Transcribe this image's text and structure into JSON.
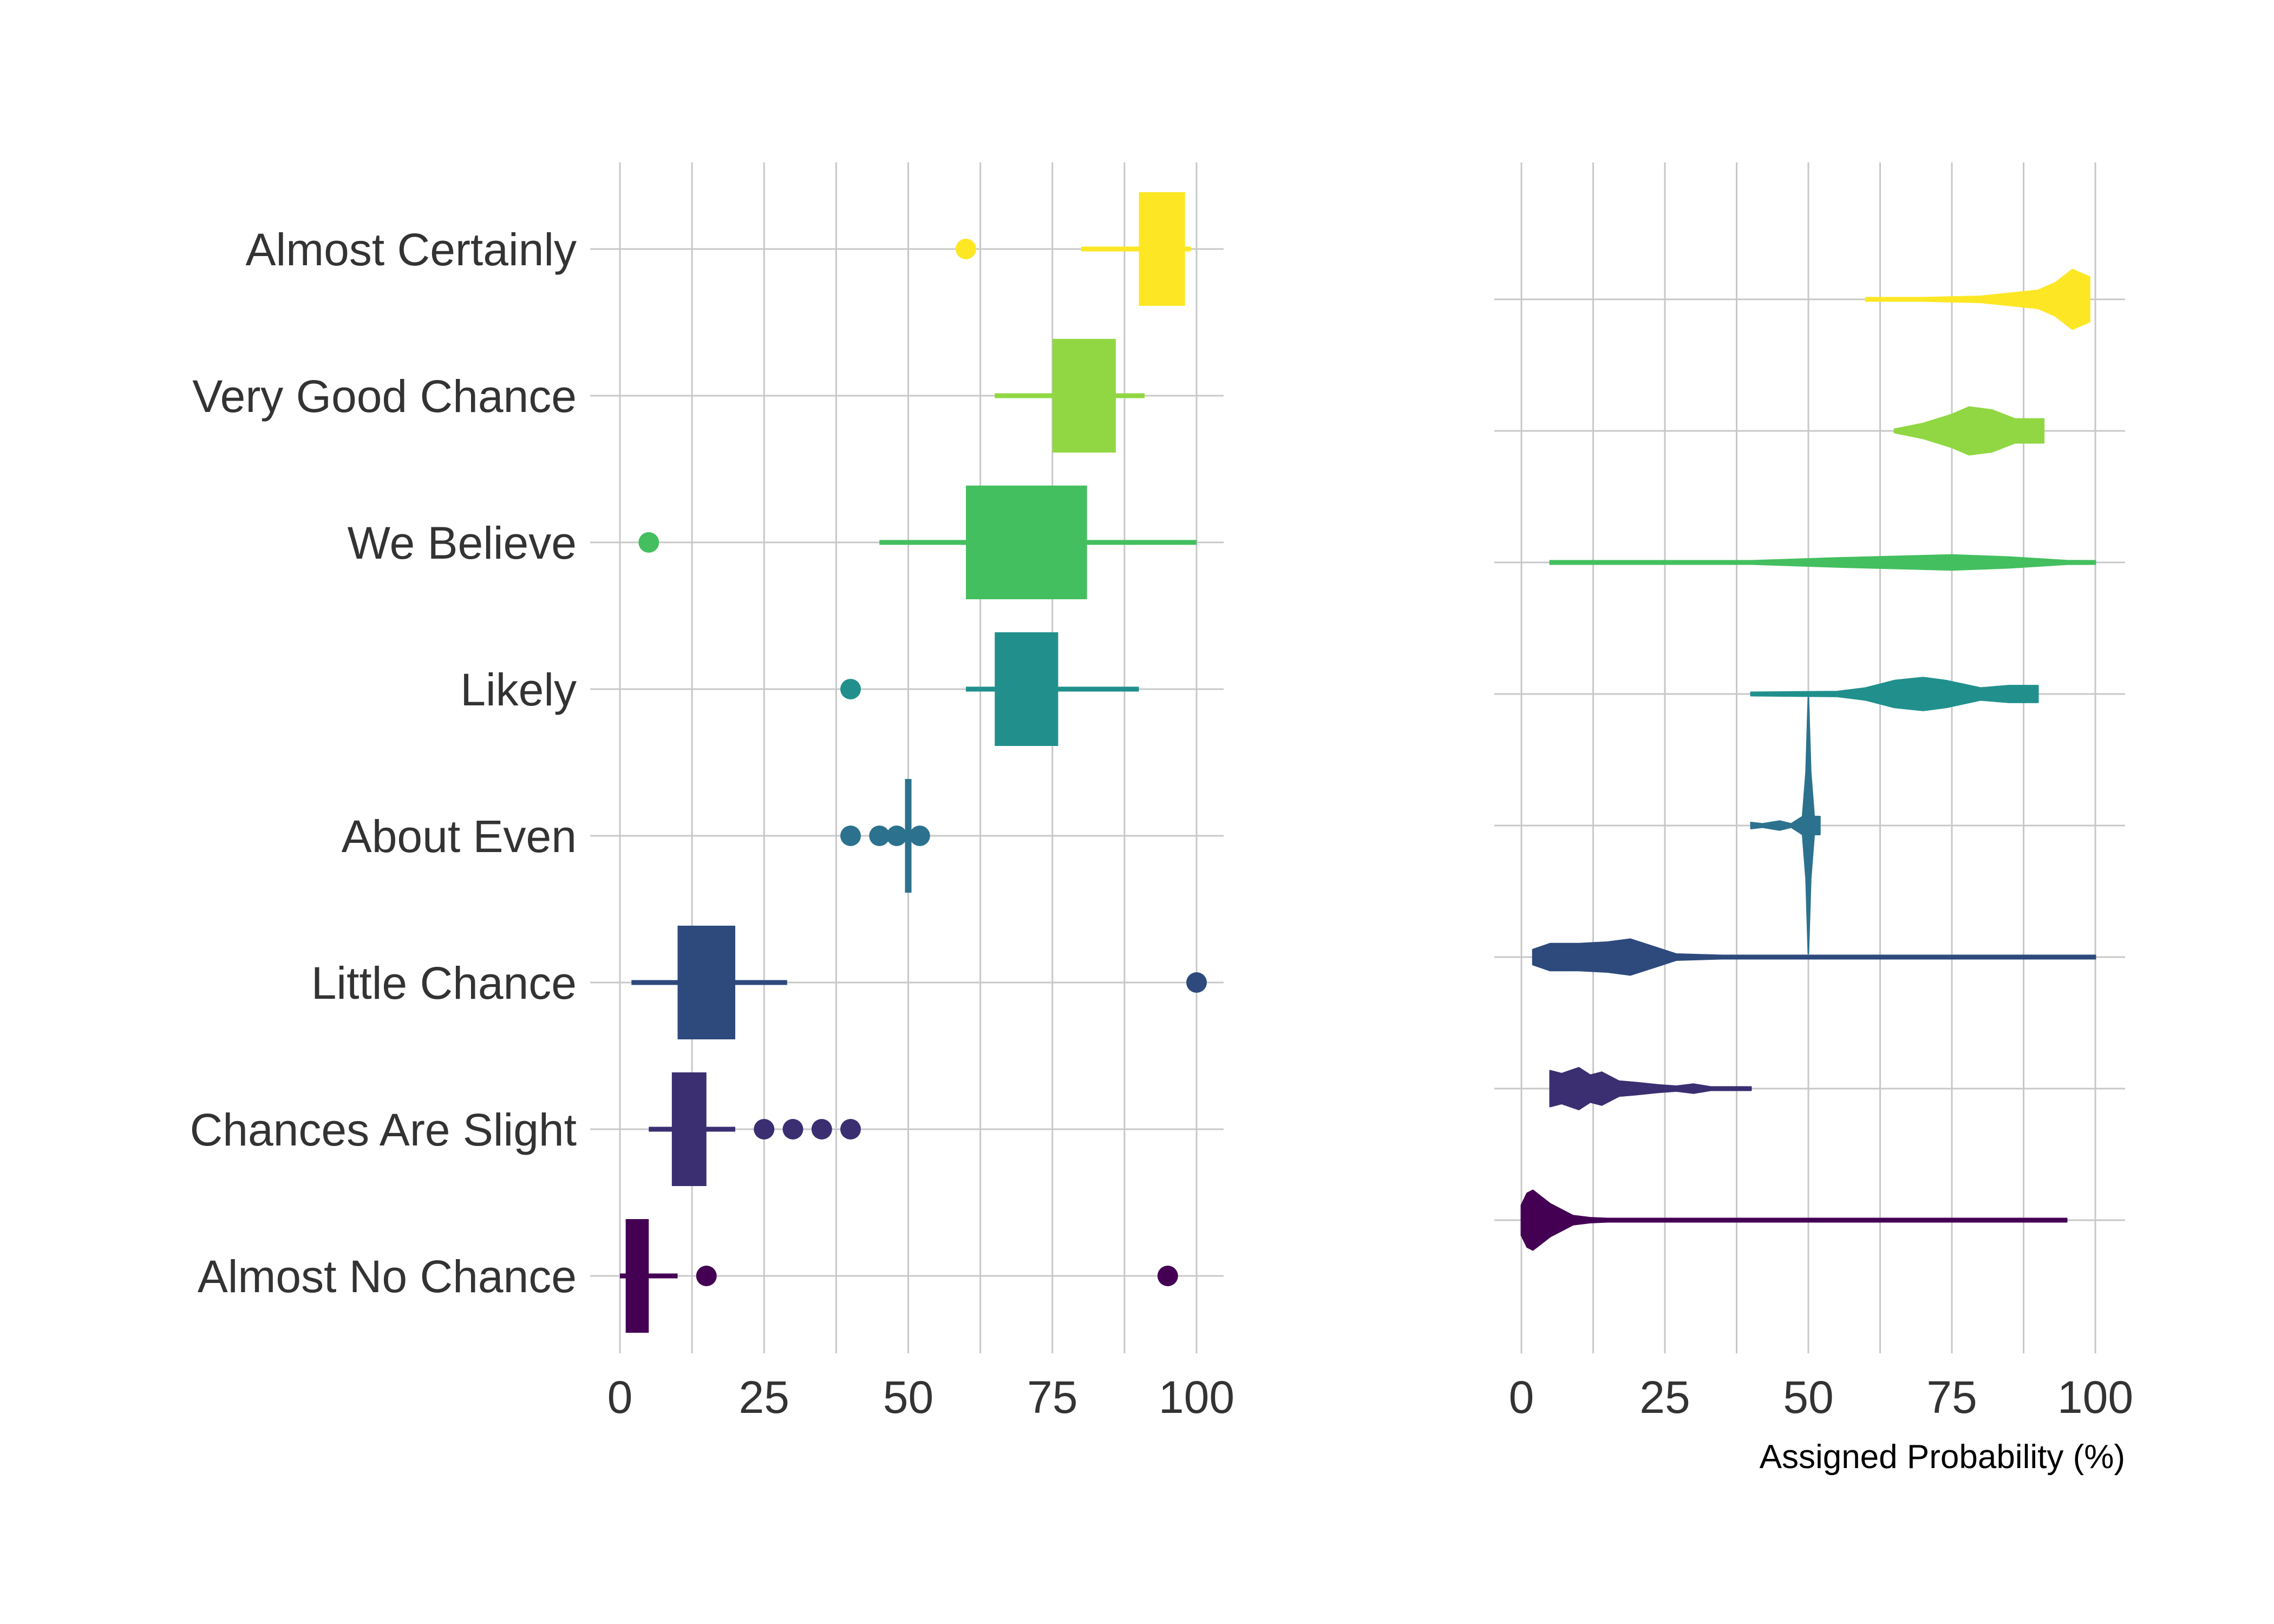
{
  "chart_data": [
    {
      "type": "box",
      "xlim": [
        0,
        100
      ],
      "xticks": [
        "0",
        "25",
        "50",
        "75",
        "100"
      ],
      "grid": true,
      "categories": [
        "Almost Certainly",
        "Very Good Chance",
        "We Believe",
        "Likely",
        "About Even",
        "Little Chance",
        "Chances Are Slight",
        "Almost No Chance"
      ],
      "colors": [
        "#fde725",
        "#90d743",
        "#44bf5f",
        "#21908d",
        "#2c728e",
        "#2e4a7d",
        "#3b2f72",
        "#440154"
      ],
      "boxes": [
        {
          "name": "Almost Certainly",
          "lower_whisker": 80,
          "q1": 90,
          "median": 95,
          "q3": 98,
          "upper_whisker": 99,
          "outliers": [
            60
          ]
        },
        {
          "name": "Very Good Chance",
          "lower_whisker": 65,
          "q1": 75,
          "median": 80,
          "q3": 86,
          "upper_whisker": 91,
          "outliers": []
        },
        {
          "name": "We Believe",
          "lower_whisker": 45,
          "q1": 60,
          "median": 75,
          "q3": 81,
          "upper_whisker": 100,
          "outliers": [
            5
          ]
        },
        {
          "name": "Likely",
          "lower_whisker": 60,
          "q1": 65,
          "median": 70,
          "q3": 76,
          "upper_whisker": 90,
          "outliers": [
            40
          ]
        },
        {
          "name": "About Even",
          "lower_whisker": 50,
          "q1": 50,
          "median": 50,
          "q3": 50,
          "upper_whisker": 50,
          "outliers": [
            40,
            45,
            48,
            52
          ]
        },
        {
          "name": "Little Chance",
          "lower_whisker": 2,
          "q1": 10,
          "median": 15,
          "q3": 20,
          "upper_whisker": 29,
          "outliers": [
            100
          ]
        },
        {
          "name": "Chances Are Slight",
          "lower_whisker": 5,
          "q1": 9,
          "median": 12,
          "q3": 15,
          "upper_whisker": 20,
          "outliers": [
            25,
            30,
            35,
            40
          ]
        },
        {
          "name": "Almost No Chance",
          "lower_whisker": 0,
          "q1": 1,
          "median": 2,
          "q3": 5,
          "upper_whisker": 10,
          "outliers": [
            15,
            95
          ]
        }
      ]
    },
    {
      "type": "violin",
      "xlim": [
        0,
        100
      ],
      "xticks": [
        "0",
        "25",
        "50",
        "75",
        "100"
      ],
      "xlabel": "Assigned Probability (%)",
      "grid": true,
      "violins": [
        {
          "name": "Almost Certainly",
          "color": "#fde725",
          "profile": [
            [
              60,
              0.02
            ],
            [
              70,
              0.03
            ],
            [
              80,
              0.1
            ],
            [
              85,
              0.2
            ],
            [
              90,
              0.3
            ],
            [
              93,
              0.55
            ],
            [
              96,
              1.0
            ],
            [
              99,
              0.75
            ]
          ]
        },
        {
          "name": "Very Good Chance",
          "color": "#90d743",
          "profile": [
            [
              65,
              0.05
            ],
            [
              70,
              0.25
            ],
            [
              75,
              0.55
            ],
            [
              78,
              0.8
            ],
            [
              82,
              0.7
            ],
            [
              86,
              0.4
            ],
            [
              88,
              0.4
            ],
            [
              91,
              0.4
            ]
          ]
        },
        {
          "name": "We Believe",
          "color": "#44bf5f",
          "profile": [
            [
              5,
              0.0
            ],
            [
              20,
              0.01
            ],
            [
              40,
              0.05
            ],
            [
              55,
              0.15
            ],
            [
              65,
              0.2
            ],
            [
              75,
              0.25
            ],
            [
              85,
              0.18
            ],
            [
              95,
              0.06
            ],
            [
              100,
              0.03
            ]
          ]
        },
        {
          "name": "Likely",
          "color": "#21908d",
          "profile": [
            [
              40,
              0.04
            ],
            [
              55,
              0.08
            ],
            [
              60,
              0.2
            ],
            [
              65,
              0.45
            ],
            [
              70,
              0.55
            ],
            [
              74,
              0.45
            ],
            [
              80,
              0.2
            ],
            [
              85,
              0.28
            ],
            [
              90,
              0.28
            ]
          ]
        },
        {
          "name": "About Even",
          "color": "#2c728e",
          "profile": [
            [
              40,
              0.1
            ],
            [
              42,
              0.02
            ],
            [
              45,
              0.15
            ],
            [
              47,
              0.02
            ],
            [
              49,
              0.3
            ],
            [
              49.6,
              1.8
            ],
            [
              50,
              4.3
            ],
            [
              50.4,
              1.8
            ],
            [
              51,
              0.3
            ],
            [
              52,
              0.3
            ]
          ]
        },
        {
          "name": "Little Chance",
          "color": "#2e4a7d",
          "profile": [
            [
              2,
              0.25
            ],
            [
              5,
              0.45
            ],
            [
              10,
              0.45
            ],
            [
              15,
              0.5
            ],
            [
              19,
              0.6
            ],
            [
              23,
              0.35
            ],
            [
              27,
              0.1
            ],
            [
              35,
              0.03
            ],
            [
              60,
              0.02
            ],
            [
              100,
              0.02
            ]
          ]
        },
        {
          "name": "Chances Are Slight",
          "color": "#3b2f72",
          "profile": [
            [
              5,
              0.6
            ],
            [
              7,
              0.5
            ],
            [
              10,
              0.7
            ],
            [
              12,
              0.45
            ],
            [
              14,
              0.55
            ],
            [
              17,
              0.25
            ],
            [
              20,
              0.2
            ],
            [
              24,
              0.12
            ],
            [
              27,
              0.08
            ],
            [
              30,
              0.15
            ],
            [
              33,
              0.05
            ],
            [
              37,
              0.04
            ],
            [
              40,
              0.03
            ]
          ]
        },
        {
          "name": "Almost No Chance",
          "color": "#440154",
          "profile": [
            [
              0,
              0.5
            ],
            [
              1,
              0.9
            ],
            [
              2,
              1.0
            ],
            [
              3,
              0.85
            ],
            [
              5,
              0.55
            ],
            [
              7,
              0.35
            ],
            [
              9,
              0.15
            ],
            [
              12,
              0.08
            ],
            [
              15,
              0.05
            ],
            [
              18,
              0.02
            ],
            [
              50,
              0.02
            ],
            [
              95,
              0.02
            ]
          ]
        }
      ]
    }
  ]
}
